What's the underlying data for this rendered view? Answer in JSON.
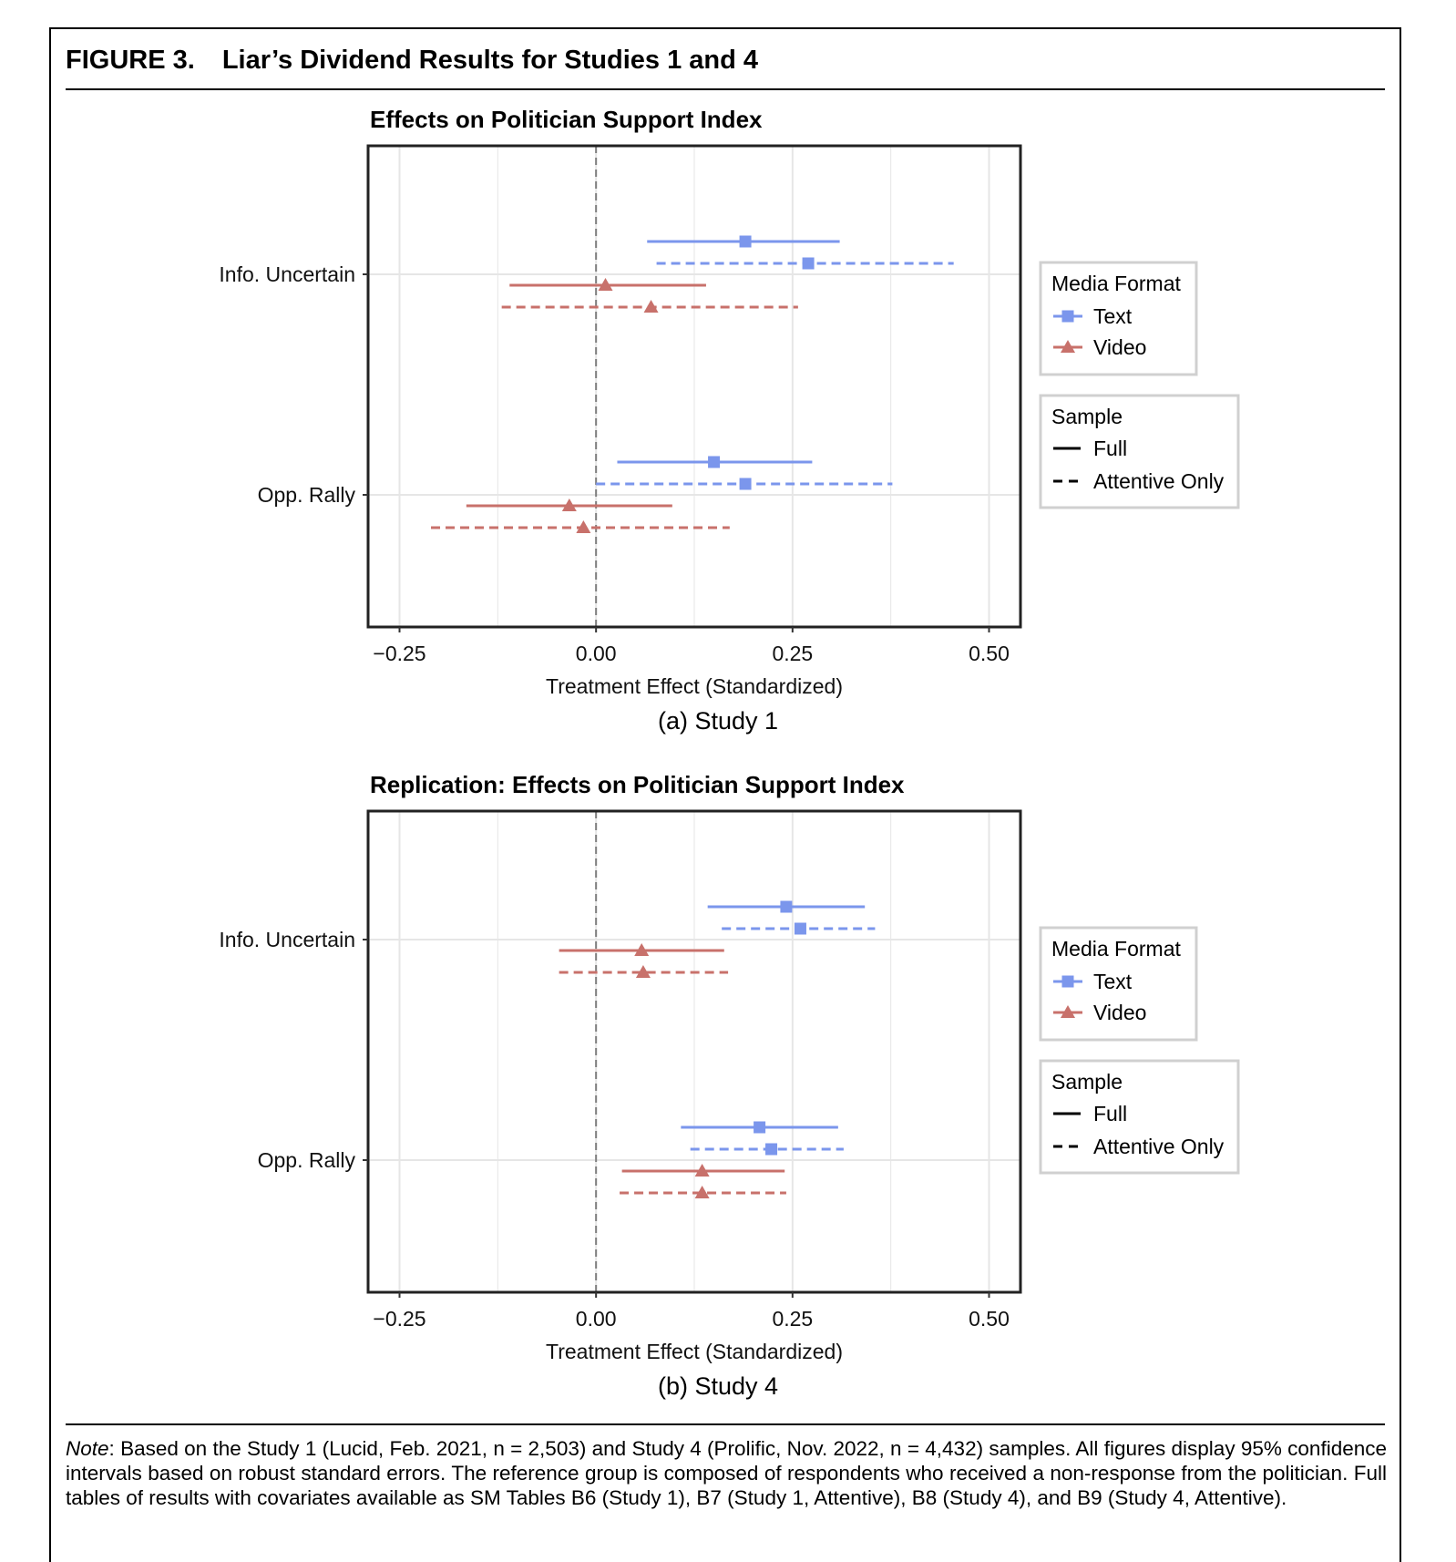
{
  "figure": {
    "number": "FIGURE 3.",
    "title": "Liar’s Dividend Results for Studies 1 and 4"
  },
  "note": {
    "label": "Note",
    "text": ": Based on the Study 1 (Lucid, Feb. 2021, n = 2,503) and Study 4 (Prolific, Nov. 2022, n = 4,432) samples. All figures display 95% confidence intervals based on robust standard errors. The reference group is composed of respondents who received a non-response from the politician. Full tables of results with covariates available as SM Tables B6 (Study 1), B7 (Study 1, Attentive), B8 (Study 4), and B9 (Study 4, Attentive)."
  },
  "colors": {
    "text": "#7b96ec",
    "video": "#c8716b",
    "reference_line": "#7f7f7f",
    "grid": "#e6e6e6"
  },
  "chart_data": [
    {
      "type": "coefficient-plot",
      "title": "Effects on Politician Support Index",
      "caption": "(a) Study 1",
      "xlabel": "Treatment Effect (Standardized)",
      "xlim": [
        -0.29,
        0.54
      ],
      "xticks": [
        -0.25,
        0.0,
        0.25,
        0.5
      ],
      "xtick_labels": [
        "−0.25",
        "0.00",
        "0.25",
        "0.50"
      ],
      "reference_line": 0,
      "grid": true,
      "categories": [
        "Info. Uncertain",
        "Opp. Rally"
      ],
      "legend": {
        "placement": "right",
        "media_title": "Media Format",
        "media_items": [
          "Text",
          "Video"
        ],
        "sample_title": "Sample",
        "sample_items": [
          "Full",
          "Attentive Only"
        ]
      },
      "series": [
        {
          "name": "Text",
          "sample": "Full",
          "estimates": [
            {
              "category": "Info. Uncertain",
              "est": 0.19,
              "lo": 0.065,
              "hi": 0.31
            },
            {
              "category": "Opp. Rally",
              "est": 0.15,
              "lo": 0.027,
              "hi": 0.275
            }
          ]
        },
        {
          "name": "Text",
          "sample": "Attentive Only",
          "estimates": [
            {
              "category": "Info. Uncertain",
              "est": 0.27,
              "lo": 0.077,
              "hi": 0.455
            },
            {
              "category": "Opp. Rally",
              "est": 0.19,
              "lo": 0.0,
              "hi": 0.377
            }
          ]
        },
        {
          "name": "Video",
          "sample": "Full",
          "estimates": [
            {
              "category": "Info. Uncertain",
              "est": 0.012,
              "lo": -0.11,
              "hi": 0.14
            },
            {
              "category": "Opp. Rally",
              "est": -0.034,
              "lo": -0.165,
              "hi": 0.097
            }
          ]
        },
        {
          "name": "Video",
          "sample": "Attentive Only",
          "estimates": [
            {
              "category": "Info. Uncertain",
              "est": 0.07,
              "lo": -0.12,
              "hi": 0.257
            },
            {
              "category": "Opp. Rally",
              "est": -0.016,
              "lo": -0.21,
              "hi": 0.17
            }
          ]
        }
      ]
    },
    {
      "type": "coefficient-plot",
      "title": "Replication: Effects on Politician Support Index",
      "caption": "(b) Study 4",
      "xlabel": "Treatment Effect (Standardized)",
      "xlim": [
        -0.29,
        0.54
      ],
      "xticks": [
        -0.25,
        0.0,
        0.25,
        0.5
      ],
      "xtick_labels": [
        "−0.25",
        "0.00",
        "0.25",
        "0.50"
      ],
      "reference_line": 0,
      "grid": true,
      "categories": [
        "Info. Uncertain",
        "Opp. Rally"
      ],
      "legend": {
        "placement": "right",
        "media_title": "Media Format",
        "media_items": [
          "Text",
          "Video"
        ],
        "sample_title": "Sample",
        "sample_items": [
          "Full",
          "Attentive Only"
        ]
      },
      "series": [
        {
          "name": "Text",
          "sample": "Full",
          "estimates": [
            {
              "category": "Info. Uncertain",
              "est": 0.242,
              "lo": 0.142,
              "hi": 0.342
            },
            {
              "category": "Opp. Rally",
              "est": 0.208,
              "lo": 0.108,
              "hi": 0.308
            }
          ]
        },
        {
          "name": "Text",
          "sample": "Attentive Only",
          "estimates": [
            {
              "category": "Info. Uncertain",
              "est": 0.26,
              "lo": 0.16,
              "hi": 0.355
            },
            {
              "category": "Opp. Rally",
              "est": 0.223,
              "lo": 0.12,
              "hi": 0.315
            }
          ]
        },
        {
          "name": "Video",
          "sample": "Full",
          "estimates": [
            {
              "category": "Info. Uncertain",
              "est": 0.058,
              "lo": -0.047,
              "hi": 0.163
            },
            {
              "category": "Opp. Rally",
              "est": 0.135,
              "lo": 0.033,
              "hi": 0.24
            }
          ]
        },
        {
          "name": "Video",
          "sample": "Attentive Only",
          "estimates": [
            {
              "category": "Info. Uncertain",
              "est": 0.06,
              "lo": -0.047,
              "hi": 0.168
            },
            {
              "category": "Opp. Rally",
              "est": 0.135,
              "lo": 0.03,
              "hi": 0.242
            }
          ]
        }
      ]
    }
  ]
}
